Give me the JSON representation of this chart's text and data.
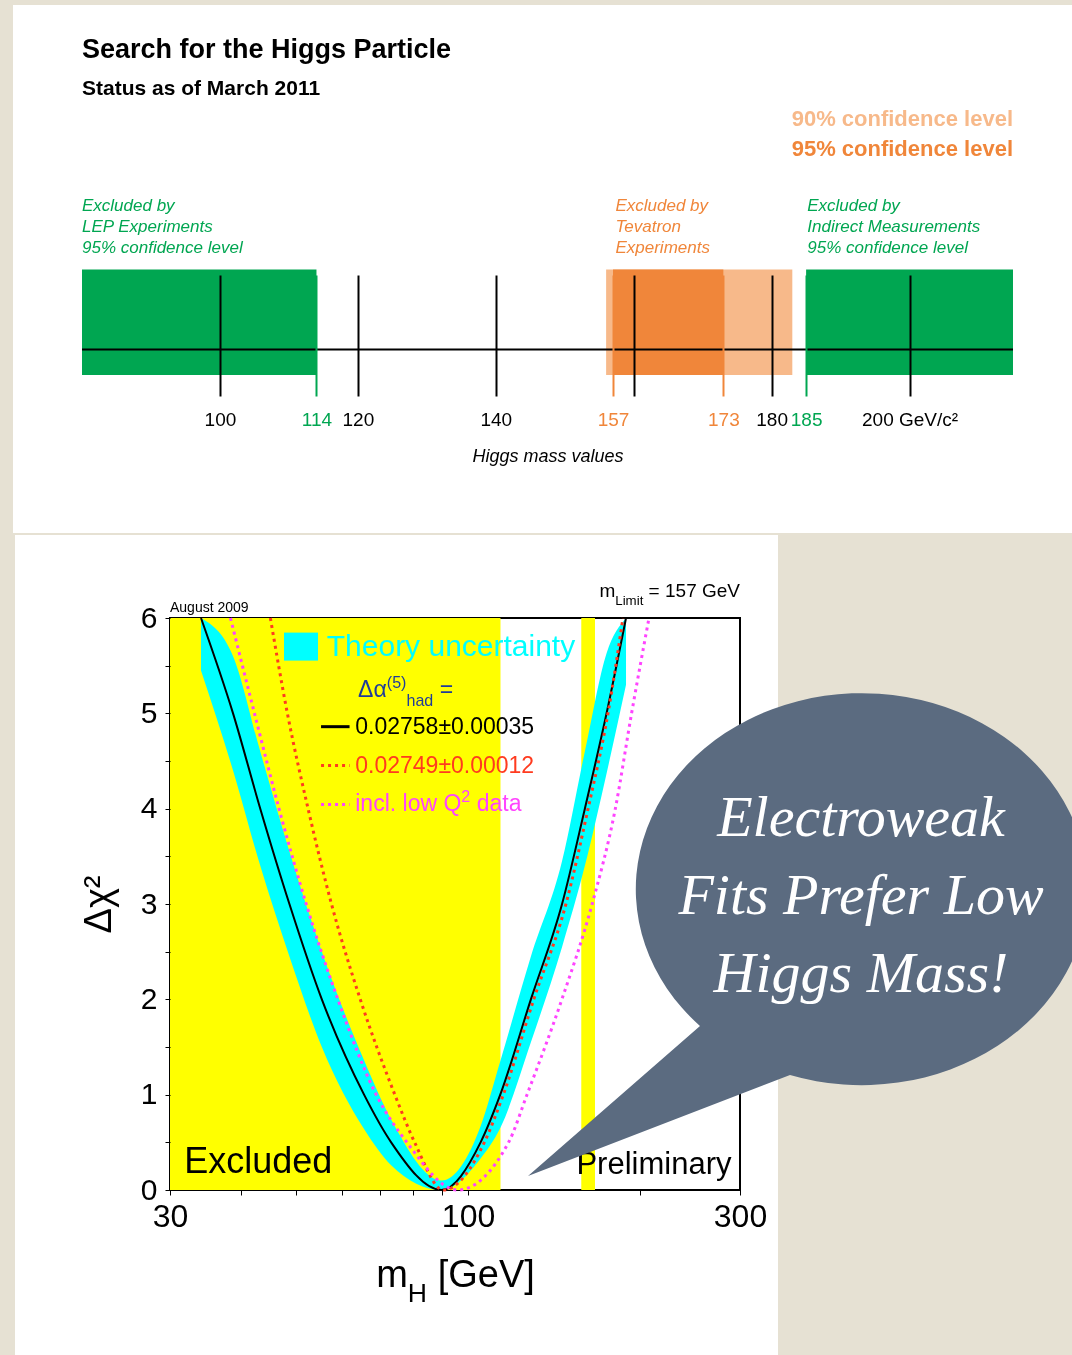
{
  "chart_data": [
    {
      "type": "bar",
      "orientation": "horizontal",
      "title": "Search for the Higgs Particle",
      "subtitle": "Status as of March 2011",
      "xlabel": "Higgs mass values",
      "categories": [
        null
      ],
      "xlim": [
        80,
        215
      ],
      "xticks": [
        100,
        114,
        120,
        140,
        157,
        {
          "value": 160,
          "label": null
        },
        173,
        180,
        185,
        {
          "value": 200,
          "label": "200 GeV/c²"
        }
      ],
      "legend": "top right",
      "grid": "x",
      "series": [
        {
          "color": "#00a651",
          "base": [
            80
          ],
          "values": [
            34
          ]
        },
        {
          "name": "90% confidence level",
          "color": "#f7b98a",
          "base": [
            156
          ],
          "values": [
            27
          ]
        },
        {
          "name": "95% confidence level",
          "color": "#f0863a",
          "base": [
            157
          ],
          "values": [
            16
          ]
        },
        {
          "color": "#00a651",
          "base": [
            185
          ],
          "values": [
            30
          ]
        }
      ],
      "annotations": [
        "Excluded by\nLEP Experiments\n95% confidence level",
        "Excluded by\nTevatron\nExperiments",
        "Excluded by\nIndirect Measurements\n95% confidence level"
      ]
    },
    {
      "type": "line",
      "xlabel": "m$_{H}$ [GeV]",
      "ylabel": "Δχ²",
      "log": "x",
      "xlim": [
        30,
        300
      ],
      "xticks": [
        30,
        {
          "value": 40,
          "label": null
        },
        {
          "value": 50,
          "label": null
        },
        {
          "value": 60,
          "label": null
        },
        {
          "value": 70,
          "label": null
        },
        {
          "value": 80,
          "label": null
        },
        {
          "value": 90,
          "label": null
        },
        100,
        {
          "value": 200,
          "label": null
        },
        300
      ],
      "ylim": [
        0,
        6
      ],
      "yticks": [
        0,
        {
          "value": 0.5,
          "label": null
        },
        1,
        {
          "value": 1.5,
          "label": null
        },
        2,
        {
          "value": 2.5,
          "label": null
        },
        3,
        {
          "value": 3.5,
          "label": null
        },
        4,
        {
          "value": 4.5,
          "label": null
        },
        5,
        {
          "value": 5.5,
          "label": null
        },
        6
      ],
      "legend": "top",
      "legend_title": "Δα$^{(5)}$$_{had}$ =",
      "bands": [
        {
          "axis": "x",
          "from": 30,
          "to": 114,
          "color": "#ffff00"
        },
        {
          "axis": "x",
          "from": 158,
          "to": 167,
          "color": "#ffff00"
        }
      ],
      "series": [
        {
          "name": "0.02758±0.00035",
          "color": "#000000",
          "line_style": "solid",
          "x": [
            34,
            38.7,
            43.2,
            48.6,
            55.4,
            65.7,
            73.3,
            89.8,
            105.2,
            113.9,
            128.9,
            146.2,
            160.3,
            175,
            189.3
          ],
          "values": [
            6,
            5,
            4,
            3,
            2,
            1,
            0.5,
            0,
            0.5,
            1,
            2,
            3,
            4,
            5,
            6
          ],
          "lower": [
            5.45,
            4.4,
            3.4,
            2.45,
            1.5,
            0.64,
            0.26,
            0,
            0.33,
            0.65,
            1.55,
            2.55,
            3.4,
            4.37,
            5.3
          ],
          "upper": [
            6,
            5.6,
            4.6,
            3.55,
            2.5,
            1.36,
            0.74,
            0.1,
            0.67,
            1.35,
            2.45,
            3.45,
            4.6,
            5.63,
            6
          ]
        },
        {
          "name": "0.02749±0.00012",
          "color": "#ff3b1f",
          "line_style": "dotted",
          "x": [
            45,
            48.2,
            52.4,
            57.6,
            64.7,
            74.4,
            80.6,
            90.5,
            106.8,
            115.3,
            130.4,
            148.5,
            162.4,
            176,
            187
          ],
          "values": [
            6,
            5,
            4,
            3,
            2,
            1,
            0.5,
            0,
            0.5,
            1,
            2,
            3,
            4,
            5,
            6
          ]
        },
        {
          "name": "incl. low Q$^{2}$ data",
          "color": "#ff44ff",
          "line_style": "dotted",
          "x": [
            38.3,
            42.2,
            46.6,
            52,
            59.1,
            69,
            78.1,
            95.9,
            117.8,
            126.9,
            146.1,
            165.1,
            181.3,
            193.6,
            207.7
          ],
          "values": [
            6,
            5,
            4,
            3,
            2,
            1,
            0.5,
            0,
            0.5,
            1,
            2,
            3,
            4,
            5,
            6
          ]
        }
      ],
      "annotations": [
        "Theory uncertainty",
        "August 2009",
        "m$_{Limit}$ = 157 GeV",
        "Excluded",
        "Preliminary",
        "Electroweak\nFits Prefer Low\nHiggs Mass!"
      ]
    }
  ]
}
